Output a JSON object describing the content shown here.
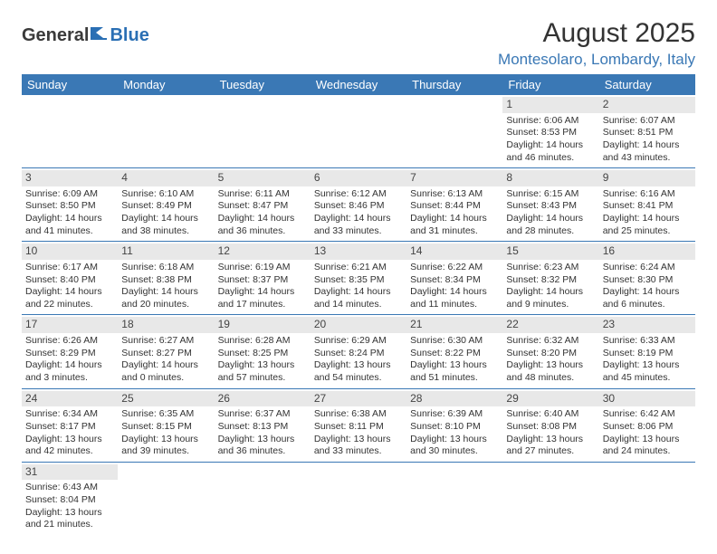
{
  "logo": {
    "part1": "General",
    "part2": "Blue"
  },
  "title": "August 2025",
  "location": "Montesolaro, Lombardy, Italy",
  "colors": {
    "header_bg": "#3a78b5",
    "header_fg": "#ffffff",
    "accent": "#3a78b5",
    "daynum_bg": "#e8e8e8",
    "text": "#333333",
    "logo_gray": "#3a3a3a",
    "logo_blue": "#2a6fb4"
  },
  "weekdays": [
    "Sunday",
    "Monday",
    "Tuesday",
    "Wednesday",
    "Thursday",
    "Friday",
    "Saturday"
  ],
  "weeks": [
    [
      null,
      null,
      null,
      null,
      null,
      {
        "d": "1",
        "sr": "6:06 AM",
        "ss": "8:53 PM",
        "dl1": "14 hours",
        "dl2": "and 46 minutes."
      },
      {
        "d": "2",
        "sr": "6:07 AM",
        "ss": "8:51 PM",
        "dl1": "14 hours",
        "dl2": "and 43 minutes."
      }
    ],
    [
      {
        "d": "3",
        "sr": "6:09 AM",
        "ss": "8:50 PM",
        "dl1": "14 hours",
        "dl2": "and 41 minutes."
      },
      {
        "d": "4",
        "sr": "6:10 AM",
        "ss": "8:49 PM",
        "dl1": "14 hours",
        "dl2": "and 38 minutes."
      },
      {
        "d": "5",
        "sr": "6:11 AM",
        "ss": "8:47 PM",
        "dl1": "14 hours",
        "dl2": "and 36 minutes."
      },
      {
        "d": "6",
        "sr": "6:12 AM",
        "ss": "8:46 PM",
        "dl1": "14 hours",
        "dl2": "and 33 minutes."
      },
      {
        "d": "7",
        "sr": "6:13 AM",
        "ss": "8:44 PM",
        "dl1": "14 hours",
        "dl2": "and 31 minutes."
      },
      {
        "d": "8",
        "sr": "6:15 AM",
        "ss": "8:43 PM",
        "dl1": "14 hours",
        "dl2": "and 28 minutes."
      },
      {
        "d": "9",
        "sr": "6:16 AM",
        "ss": "8:41 PM",
        "dl1": "14 hours",
        "dl2": "and 25 minutes."
      }
    ],
    [
      {
        "d": "10",
        "sr": "6:17 AM",
        "ss": "8:40 PM",
        "dl1": "14 hours",
        "dl2": "and 22 minutes."
      },
      {
        "d": "11",
        "sr": "6:18 AM",
        "ss": "8:38 PM",
        "dl1": "14 hours",
        "dl2": "and 20 minutes."
      },
      {
        "d": "12",
        "sr": "6:19 AM",
        "ss": "8:37 PM",
        "dl1": "14 hours",
        "dl2": "and 17 minutes."
      },
      {
        "d": "13",
        "sr": "6:21 AM",
        "ss": "8:35 PM",
        "dl1": "14 hours",
        "dl2": "and 14 minutes."
      },
      {
        "d": "14",
        "sr": "6:22 AM",
        "ss": "8:34 PM",
        "dl1": "14 hours",
        "dl2": "and 11 minutes."
      },
      {
        "d": "15",
        "sr": "6:23 AM",
        "ss": "8:32 PM",
        "dl1": "14 hours",
        "dl2": "and 9 minutes."
      },
      {
        "d": "16",
        "sr": "6:24 AM",
        "ss": "8:30 PM",
        "dl1": "14 hours",
        "dl2": "and 6 minutes."
      }
    ],
    [
      {
        "d": "17",
        "sr": "6:26 AM",
        "ss": "8:29 PM",
        "dl1": "14 hours",
        "dl2": "and 3 minutes."
      },
      {
        "d": "18",
        "sr": "6:27 AM",
        "ss": "8:27 PM",
        "dl1": "14 hours",
        "dl2": "and 0 minutes."
      },
      {
        "d": "19",
        "sr": "6:28 AM",
        "ss": "8:25 PM",
        "dl1": "13 hours",
        "dl2": "and 57 minutes."
      },
      {
        "d": "20",
        "sr": "6:29 AM",
        "ss": "8:24 PM",
        "dl1": "13 hours",
        "dl2": "and 54 minutes."
      },
      {
        "d": "21",
        "sr": "6:30 AM",
        "ss": "8:22 PM",
        "dl1": "13 hours",
        "dl2": "and 51 minutes."
      },
      {
        "d": "22",
        "sr": "6:32 AM",
        "ss": "8:20 PM",
        "dl1": "13 hours",
        "dl2": "and 48 minutes."
      },
      {
        "d": "23",
        "sr": "6:33 AM",
        "ss": "8:19 PM",
        "dl1": "13 hours",
        "dl2": "and 45 minutes."
      }
    ],
    [
      {
        "d": "24",
        "sr": "6:34 AM",
        "ss": "8:17 PM",
        "dl1": "13 hours",
        "dl2": "and 42 minutes."
      },
      {
        "d": "25",
        "sr": "6:35 AM",
        "ss": "8:15 PM",
        "dl1": "13 hours",
        "dl2": "and 39 minutes."
      },
      {
        "d": "26",
        "sr": "6:37 AM",
        "ss": "8:13 PM",
        "dl1": "13 hours",
        "dl2": "and 36 minutes."
      },
      {
        "d": "27",
        "sr": "6:38 AM",
        "ss": "8:11 PM",
        "dl1": "13 hours",
        "dl2": "and 33 minutes."
      },
      {
        "d": "28",
        "sr": "6:39 AM",
        "ss": "8:10 PM",
        "dl1": "13 hours",
        "dl2": "and 30 minutes."
      },
      {
        "d": "29",
        "sr": "6:40 AM",
        "ss": "8:08 PM",
        "dl1": "13 hours",
        "dl2": "and 27 minutes."
      },
      {
        "d": "30",
        "sr": "6:42 AM",
        "ss": "8:06 PM",
        "dl1": "13 hours",
        "dl2": "and 24 minutes."
      }
    ],
    [
      {
        "d": "31",
        "sr": "6:43 AM",
        "ss": "8:04 PM",
        "dl1": "13 hours",
        "dl2": "and 21 minutes."
      },
      null,
      null,
      null,
      null,
      null,
      null
    ]
  ],
  "labels": {
    "sunrise": "Sunrise:",
    "sunset": "Sunset:",
    "daylight": "Daylight:"
  }
}
